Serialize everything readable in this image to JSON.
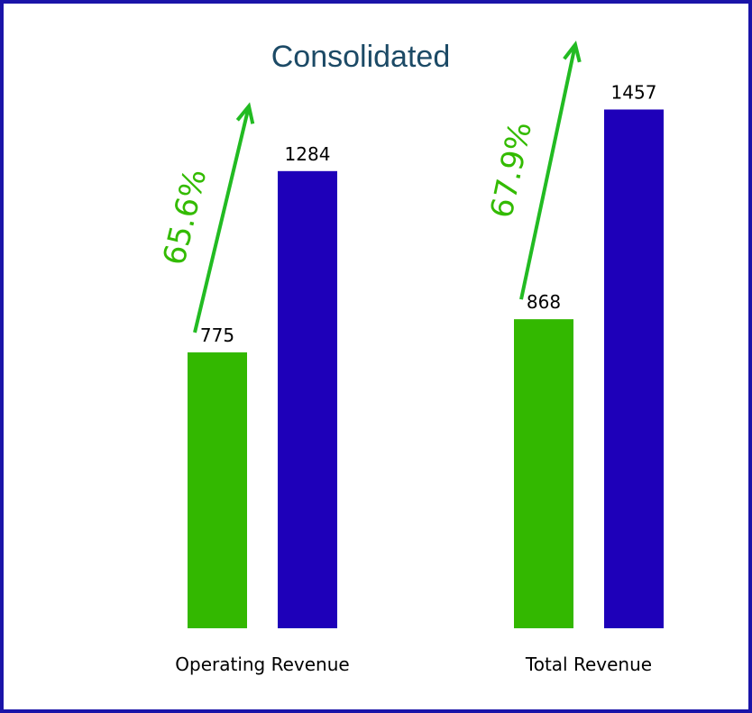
{
  "chart_data": {
    "type": "bar",
    "title": "Consolidated",
    "categories": [
      "Operating Revenue",
      "Total Revenue"
    ],
    "series": [
      {
        "color": "#33b800",
        "values": [
          775,
          868
        ]
      },
      {
        "color": "#1e00b9",
        "values": [
          1284,
          1457
        ]
      }
    ],
    "annotations": [
      "65.6%",
      "67.9%"
    ],
    "ylim": [
      0,
      1500
    ]
  }
}
